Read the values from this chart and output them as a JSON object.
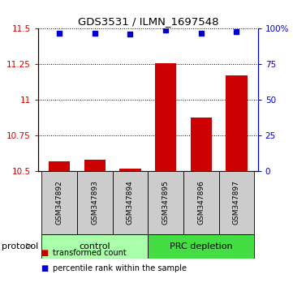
{
  "title": "GDS3531 / ILMN_1697548",
  "samples": [
    "GSM347892",
    "GSM347893",
    "GSM347894",
    "GSM347895",
    "GSM347896",
    "GSM347897"
  ],
  "red_values": [
    10.565,
    10.575,
    10.515,
    11.255,
    10.875,
    11.17
  ],
  "blue_values": [
    97,
    97,
    96,
    99,
    97,
    98
  ],
  "ylim_left": [
    10.5,
    11.5
  ],
  "ylim_right": [
    0,
    100
  ],
  "yticks_left": [
    10.5,
    10.75,
    11.0,
    11.25,
    11.5
  ],
  "ytick_labels_left": [
    "10.5",
    "10.75",
    "11",
    "11.25",
    "11.5"
  ],
  "yticks_right": [
    0,
    25,
    50,
    75,
    100
  ],
  "ytick_labels_right": [
    "0",
    "25",
    "50",
    "75",
    "100%"
  ],
  "groups": [
    {
      "label": "control",
      "indices": [
        0,
        1,
        2
      ],
      "color": "#aaffaa"
    },
    {
      "label": "PRC depletion",
      "indices": [
        3,
        4,
        5
      ],
      "color": "#44dd44"
    }
  ],
  "bar_color": "#cc0000",
  "dot_color": "#0000cc",
  "baseline": 10.5,
  "protocol_label": "protocol",
  "legend_red": "transformed count",
  "legend_blue": "percentile rank within the sample",
  "bg_color": "#ffffff",
  "tick_area_color": "#cccccc"
}
